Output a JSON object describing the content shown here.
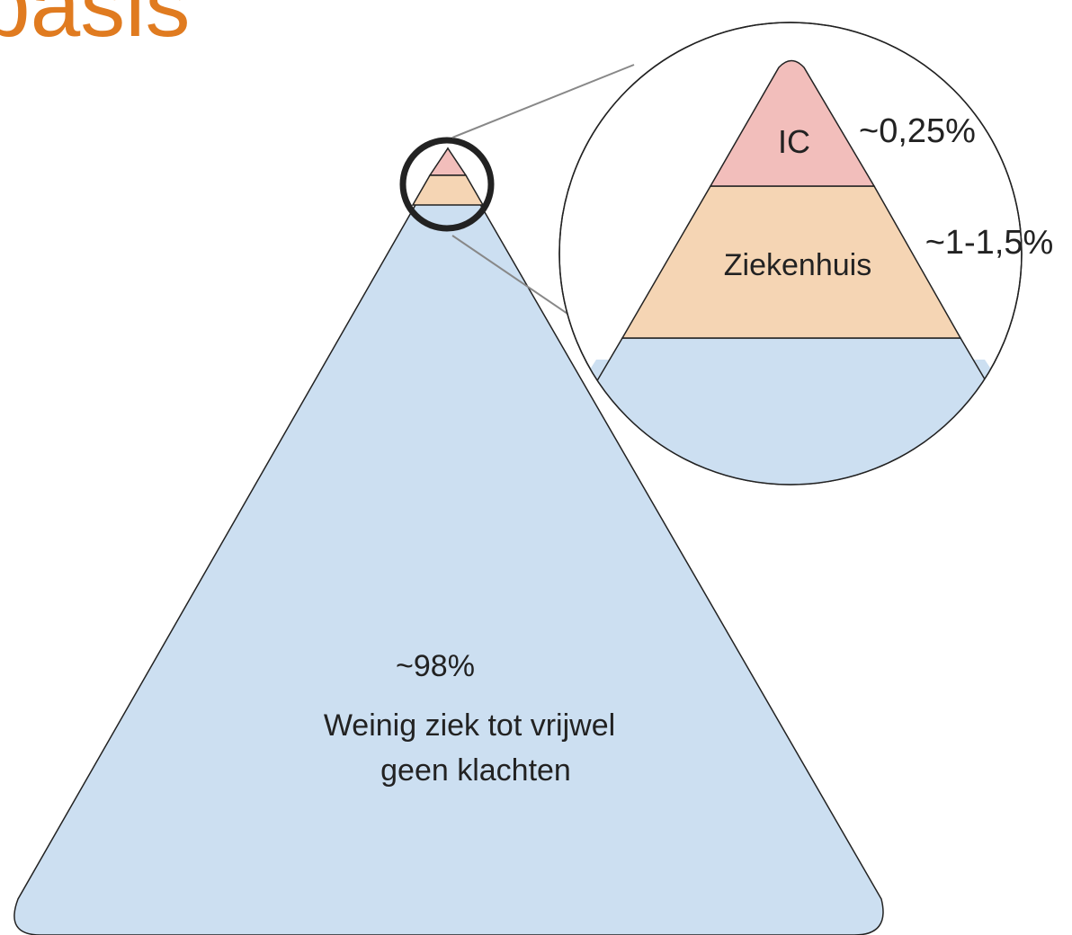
{
  "header": {
    "title": "basis"
  },
  "zoom": {
    "top_label": "IC",
    "top_percent": "~0,25%",
    "middle_label": "Ziekenhuis",
    "middle_percent": "~1-1,5%"
  },
  "base": {
    "percent": "~98%",
    "description": [
      "Weinig ziek tot vrijwel",
      "geen klachten"
    ]
  }
}
